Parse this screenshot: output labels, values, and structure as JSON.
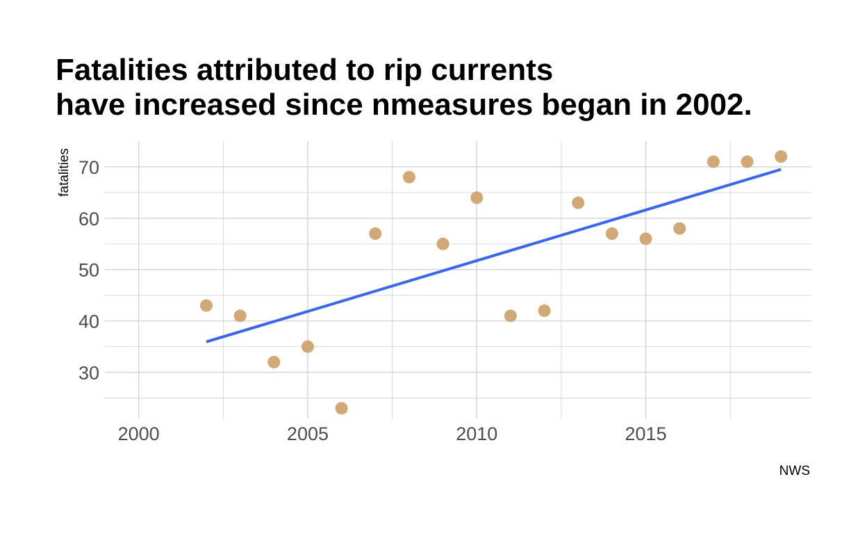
{
  "chart_data": {
    "type": "scatter",
    "title_lines": [
      "Fatalities attributed to rip currents",
      "have increased since nmeasures began in 2002."
    ],
    "xlabel": "",
    "ylabel": "fatalities",
    "caption": "NWS",
    "xlim": [
      1999.0,
      2019.9
    ],
    "ylim": [
      21.0,
      75.0
    ],
    "x_ticks": [
      2000,
      2005,
      2010,
      2015
    ],
    "y_ticks": [
      30,
      40,
      50,
      60,
      70
    ],
    "grid": true,
    "point_color": "#D2A875",
    "line_color": "#3366FF",
    "series": [
      {
        "x": [
          2002,
          2003,
          2004,
          2005,
          2006,
          2007,
          2008,
          2009,
          2010,
          2011,
          2012,
          2013,
          2014,
          2015,
          2016,
          2017,
          2018,
          2019
        ],
        "y": [
          43,
          41,
          32,
          35,
          23,
          57,
          68,
          55,
          64,
          41,
          42,
          63,
          57,
          56,
          58,
          71,
          71,
          72
        ]
      }
    ],
    "trend": {
      "method": "linear",
      "x_range": [
        2002,
        2019
      ]
    }
  }
}
